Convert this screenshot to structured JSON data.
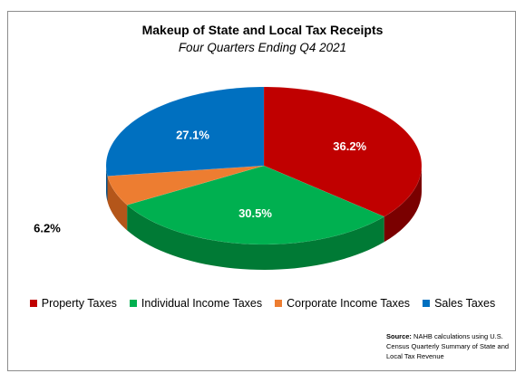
{
  "chart_data": {
    "type": "pie",
    "title": "Makeup of State and Local Tax Receipts",
    "subtitle": "Four Quarters Ending Q4 2021",
    "slices": [
      {
        "name": "Property Taxes",
        "value": 36.2,
        "label": "36.2%",
        "color": "#c00000",
        "side_color": "#7a0000"
      },
      {
        "name": "Individual Income Taxes",
        "value": 30.5,
        "label": "30.5%",
        "color": "#00b050",
        "side_color": "#007a35"
      },
      {
        "name": "Corporate Income Taxes",
        "value": 6.2,
        "label": "6.2%",
        "color": "#ed7d31",
        "side_color": "#b4561a"
      },
      {
        "name": "Sales Taxes",
        "value": 27.1,
        "label": "27.1%",
        "color": "#0070c0",
        "side_color": "#004f88"
      }
    ],
    "legend_position": "bottom",
    "three_d": true
  },
  "source": {
    "label": "Source:",
    "text": "NAHB calculations using U.S. Census Quarterly Summary of State and Local Tax Revenue"
  }
}
